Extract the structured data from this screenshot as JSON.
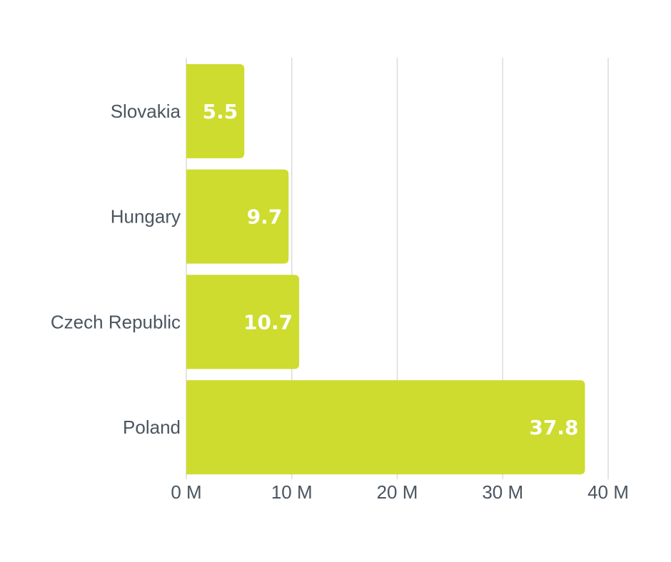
{
  "chart_data": {
    "type": "bar",
    "orientation": "horizontal",
    "categories": [
      "Slovakia",
      "Hungary",
      "Czech Republic",
      "Poland"
    ],
    "values": [
      5.5,
      9.7,
      10.7,
      37.8
    ],
    "value_labels": [
      "5.5",
      "9.7",
      "10.7",
      "37.8"
    ],
    "xlim": [
      0,
      40
    ],
    "x_ticks": [
      "0 M",
      "10 M",
      "20 M",
      "30 M",
      "40 M"
    ],
    "grid": true,
    "legend": "none",
    "bar_color": "#cddc2e",
    "label_color": "#4a5560"
  }
}
